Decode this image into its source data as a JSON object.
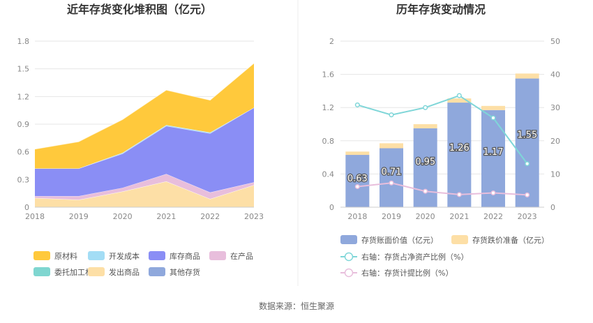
{
  "colors": {
    "raw_materials": "#FFC93C",
    "dev_cost": "#A3DDF5",
    "inventory_goods": "#8A8EF5",
    "wip": "#E8BEDC",
    "consigned": "#7FD6D0",
    "shipped": "#FDDFA6",
    "other": "#8FA8DC",
    "book_value": "#8FA8DC",
    "provision": "#FDDFA6",
    "line_ratio": "#7FD6D8",
    "line_provision": "#E8BEDC"
  },
  "source_text": "数据来源：恒生聚源",
  "chart_data": [
    {
      "type": "area",
      "title": "近年存货变化堆积图（亿元）",
      "x": [
        "2018",
        "2019",
        "2020",
        "2021",
        "2022",
        "2023"
      ],
      "ylim": [
        0,
        1.8
      ],
      "yticks": [
        "0",
        "0.3",
        "0.6",
        "0.9",
        "1.2",
        "1.5",
        "1.8"
      ],
      "stacked": true,
      "series": [
        {
          "name": "其他存货",
          "color_key": "other",
          "values": [
            0.0,
            0.0,
            0.0,
            0.0,
            0.0,
            0.0
          ]
        },
        {
          "name": "发出商品",
          "color_key": "shipped",
          "values": [
            0.1,
            0.08,
            0.17,
            0.28,
            0.09,
            0.24
          ]
        },
        {
          "name": "委托加工材料",
          "color_key": "consigned",
          "values": [
            0.0,
            0.0,
            0.0,
            0.0,
            0.0,
            0.0
          ]
        },
        {
          "name": "在产品",
          "color_key": "wip",
          "values": [
            0.02,
            0.04,
            0.04,
            0.08,
            0.07,
            0.03
          ]
        },
        {
          "name": "库存商品",
          "color_key": "inventory_goods",
          "values": [
            0.3,
            0.3,
            0.37,
            0.52,
            0.64,
            0.81
          ]
        },
        {
          "name": "开发成本",
          "color_key": "dev_cost",
          "values": [
            0.0,
            0.0,
            0.01,
            0.01,
            0.01,
            0.0
          ]
        },
        {
          "name": "原材料",
          "color_key": "raw_materials",
          "values": [
            0.21,
            0.29,
            0.36,
            0.38,
            0.35,
            0.48
          ]
        }
      ],
      "legend": [
        {
          "label": "原材料",
          "color_key": "raw_materials"
        },
        {
          "label": "开发成本",
          "color_key": "dev_cost"
        },
        {
          "label": "库存商品",
          "color_key": "inventory_goods"
        },
        {
          "label": "在产品",
          "color_key": "wip"
        },
        {
          "label": "委托加工材料",
          "color_key": "consigned"
        },
        {
          "label": "发出商品",
          "color_key": "shipped"
        },
        {
          "label": "其他存货",
          "color_key": "other"
        }
      ],
      "legend_position": "bottom"
    },
    {
      "type": "bar",
      "title": "历年存货变动情况",
      "categories": [
        "2018",
        "2019",
        "2020",
        "2021",
        "2022",
        "2023"
      ],
      "ylim": [
        0,
        2
      ],
      "yticks": [
        "0",
        "0.4",
        "0.8",
        "1.2",
        "1.6",
        "2"
      ],
      "y2lim": [
        0,
        50
      ],
      "y2ticks": [
        "0",
        "10",
        "20",
        "30",
        "40",
        "50"
      ],
      "bars": [
        {
          "name": "存货账面价值（亿元）",
          "color_key": "book_value",
          "values": [
            0.63,
            0.71,
            0.95,
            1.26,
            1.17,
            1.55
          ],
          "labels": [
            "0.63",
            "0.71",
            "0.95",
            "1.26",
            "1.17",
            "1.55"
          ]
        },
        {
          "name": "存货跌价准备（亿元）",
          "color_key": "provision",
          "values": [
            0.04,
            0.06,
            0.05,
            0.05,
            0.05,
            0.06
          ]
        }
      ],
      "lines": [
        {
          "name": "右轴：存货占净资产比例（%）",
          "color_key": "line_ratio",
          "values": [
            30.8,
            27.8,
            30.0,
            33.6,
            26.9,
            13.1
          ]
        },
        {
          "name": "右轴：存货计提比例（%）",
          "color_key": "line_provision",
          "values": [
            6.2,
            7.3,
            4.8,
            3.8,
            4.3,
            3.7
          ]
        }
      ],
      "legend_position": "bottom"
    }
  ]
}
